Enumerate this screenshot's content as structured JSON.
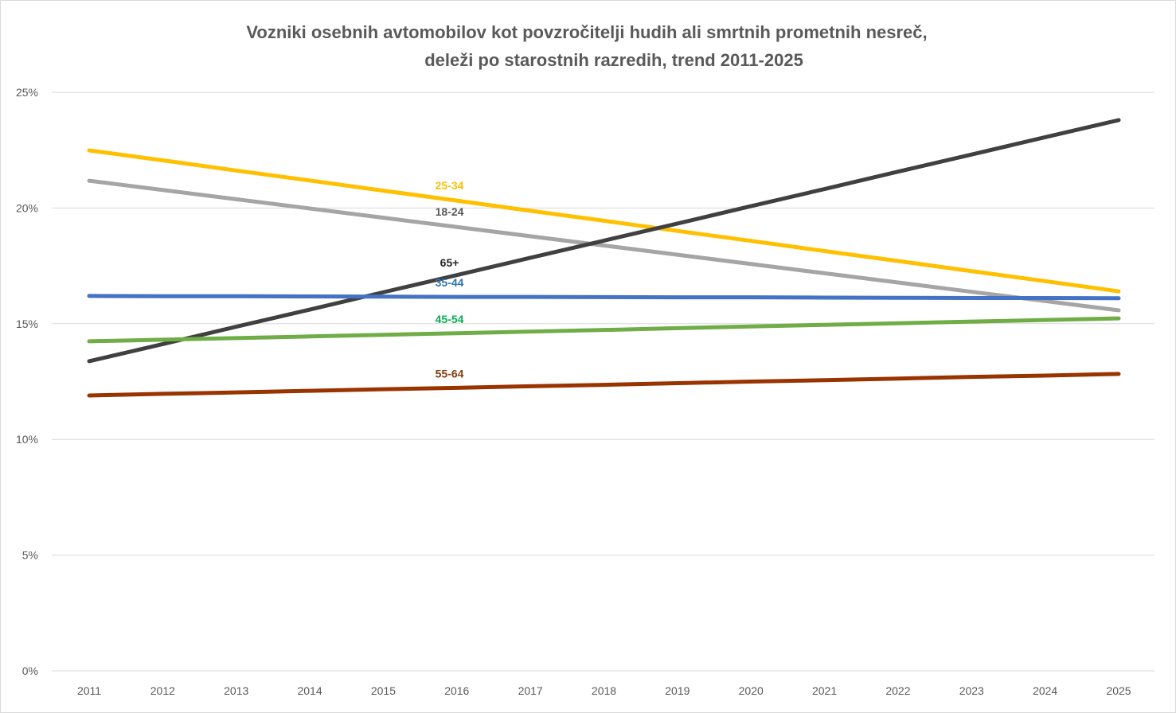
{
  "chart_data": {
    "type": "line",
    "title": [
      "Vozniki osebnih avtomobilov kot povzročitelji hudih ali smrtnih prometnih nesreč,",
      "deleži po starostnih razredih, trend 2011-2025"
    ],
    "xlabel": "",
    "ylabel": "",
    "x": [
      2011,
      2012,
      2013,
      2014,
      2015,
      2016,
      2017,
      2018,
      2019,
      2020,
      2021,
      2022,
      2023,
      2024,
      2025
    ],
    "ylim": [
      0,
      25
    ],
    "yticks": [
      0,
      5,
      10,
      15,
      20,
      25
    ],
    "ytick_labels": [
      "0%",
      "5%",
      "10%",
      "15%",
      "20%",
      "25%"
    ],
    "grid": true,
    "legend": "inline labels",
    "series": [
      {
        "name": "25-34",
        "color": "#FFC000",
        "label_color": "#FFC000",
        "values": [
          22.49,
          22.06,
          21.62,
          21.19,
          20.75,
          20.32,
          19.88,
          19.45,
          19.01,
          18.58,
          18.14,
          17.71,
          17.27,
          16.84,
          16.4
        ]
      },
      {
        "name": "18-24",
        "color": "#A5A5A5",
        "label_color": "#595959",
        "values": [
          21.18,
          20.78,
          20.38,
          19.98,
          19.58,
          19.18,
          18.78,
          18.38,
          17.98,
          17.58,
          17.18,
          16.78,
          16.38,
          15.98,
          15.58
        ]
      },
      {
        "name": "65+",
        "color": "#404040",
        "label_color": "#262626",
        "values": [
          13.38,
          14.12,
          14.87,
          15.61,
          16.36,
          17.1,
          17.85,
          18.59,
          19.33,
          20.08,
          20.82,
          21.57,
          22.31,
          23.06,
          23.8
        ]
      },
      {
        "name": "35-44",
        "color": "#4472C4",
        "label_color": "#2E75B6",
        "values": [
          16.2,
          16.19,
          16.19,
          16.18,
          16.17,
          16.16,
          16.16,
          16.15,
          16.14,
          16.14,
          16.13,
          16.12,
          16.11,
          16.11,
          16.1
        ]
      },
      {
        "name": "45-54",
        "color": "#70AD47",
        "label_color": "#00B050",
        "values": [
          14.24,
          14.31,
          14.38,
          14.45,
          14.52,
          14.59,
          14.66,
          14.73,
          14.81,
          14.88,
          14.95,
          15.02,
          15.09,
          15.16,
          15.23
        ]
      },
      {
        "name": "55-64",
        "color": "#993300",
        "label_color": "#843C0C",
        "values": [
          11.9,
          11.97,
          12.03,
          12.1,
          12.17,
          12.23,
          12.3,
          12.36,
          12.43,
          12.5,
          12.56,
          12.63,
          12.7,
          12.76,
          12.83
        ]
      }
    ]
  }
}
